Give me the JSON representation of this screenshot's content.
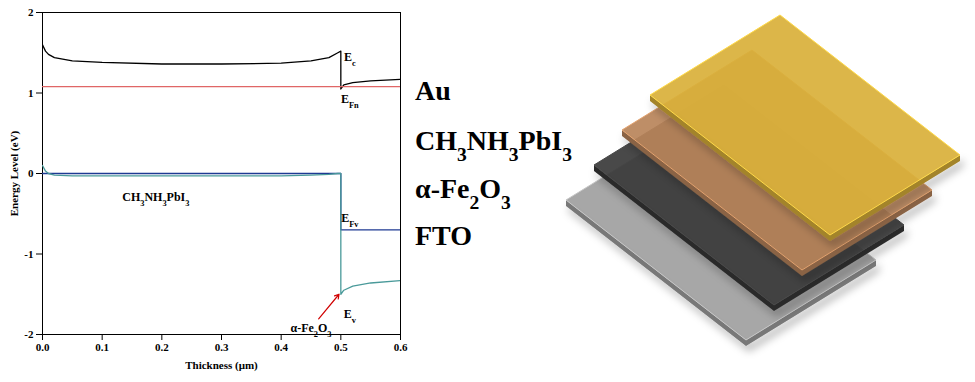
{
  "chart_data": {
    "type": "line",
    "x_label": "Thickness (μm)",
    "y_label": "Energy Level (eV)",
    "xlim": [
      0,
      0.6
    ],
    "xticks": [
      {
        "value": 0,
        "label": "0.0"
      },
      0.1,
      0.2,
      0.3,
      0.4,
      0.5,
      0.6
    ],
    "ylim": [
      -2,
      2
    ],
    "yticks": [
      -2,
      -1,
      0,
      1,
      2
    ],
    "grid": false,
    "x": [
      0,
      0.005,
      0.01,
      0.02,
      0.05,
      0.1,
      0.2,
      0.3,
      0.4,
      0.45,
      0.48,
      0.495,
      0.5,
      0.5,
      0.505,
      0.52,
      0.55,
      0.6
    ],
    "series": [
      {
        "name": "Ec",
        "color": "#000000",
        "values": [
          1.6,
          1.52,
          1.48,
          1.44,
          1.4,
          1.38,
          1.36,
          1.36,
          1.37,
          1.4,
          1.44,
          1.5,
          1.52,
          1.05,
          1.1,
          1.13,
          1.15,
          1.17
        ]
      },
      {
        "name": "EFn",
        "color": "#e06666",
        "values": [
          1.08,
          1.08,
          1.08,
          1.08,
          1.08,
          1.08,
          1.08,
          1.08,
          1.08,
          1.08,
          1.08,
          1.08,
          1.08,
          1.08,
          1.08,
          1.08,
          1.08,
          1.08
        ]
      },
      {
        "name": "EFv",
        "color": "#1f3a93",
        "values": [
          0,
          0,
          0,
          0,
          0,
          0,
          0,
          0,
          0,
          0,
          0,
          0,
          0,
          -0.7,
          -0.7,
          -0.7,
          -0.7,
          -0.7
        ]
      },
      {
        "name": "Ev",
        "color": "#4a9a9a",
        "values": [
          0.1,
          0.03,
          0,
          -0.02,
          -0.03,
          -0.03,
          -0.03,
          -0.03,
          -0.03,
          -0.02,
          -0.01,
          0,
          0,
          -1.5,
          -1.45,
          -1.4,
          -1.36,
          -1.33
        ]
      }
    ],
    "annotations": [
      {
        "text": "Ec",
        "x": 0.515,
        "y": 1.45
      },
      {
        "text": "EFn",
        "x": 0.515,
        "y": 0.92
      },
      {
        "text": "EFv",
        "x": 0.515,
        "y": -0.55
      },
      {
        "text": "Ev",
        "x": 0.515,
        "y": -1.75
      },
      {
        "text": "CH3NH3PbI3",
        "x": 0.19,
        "y": -0.3
      },
      {
        "text": "α-Fe2O3",
        "x": 0.45,
        "y": -1.92,
        "arrow": [
          0.497,
          -1.5
        ]
      }
    ]
  },
  "layer_stack": {
    "labels": [
      "Au",
      "CH3NH3PbI3",
      "α-Fe2O3",
      "FTO"
    ],
    "colors": [
      "#d9b03a",
      "#b8845a",
      "#3a3a3a",
      "#a0a0a0"
    ]
  }
}
